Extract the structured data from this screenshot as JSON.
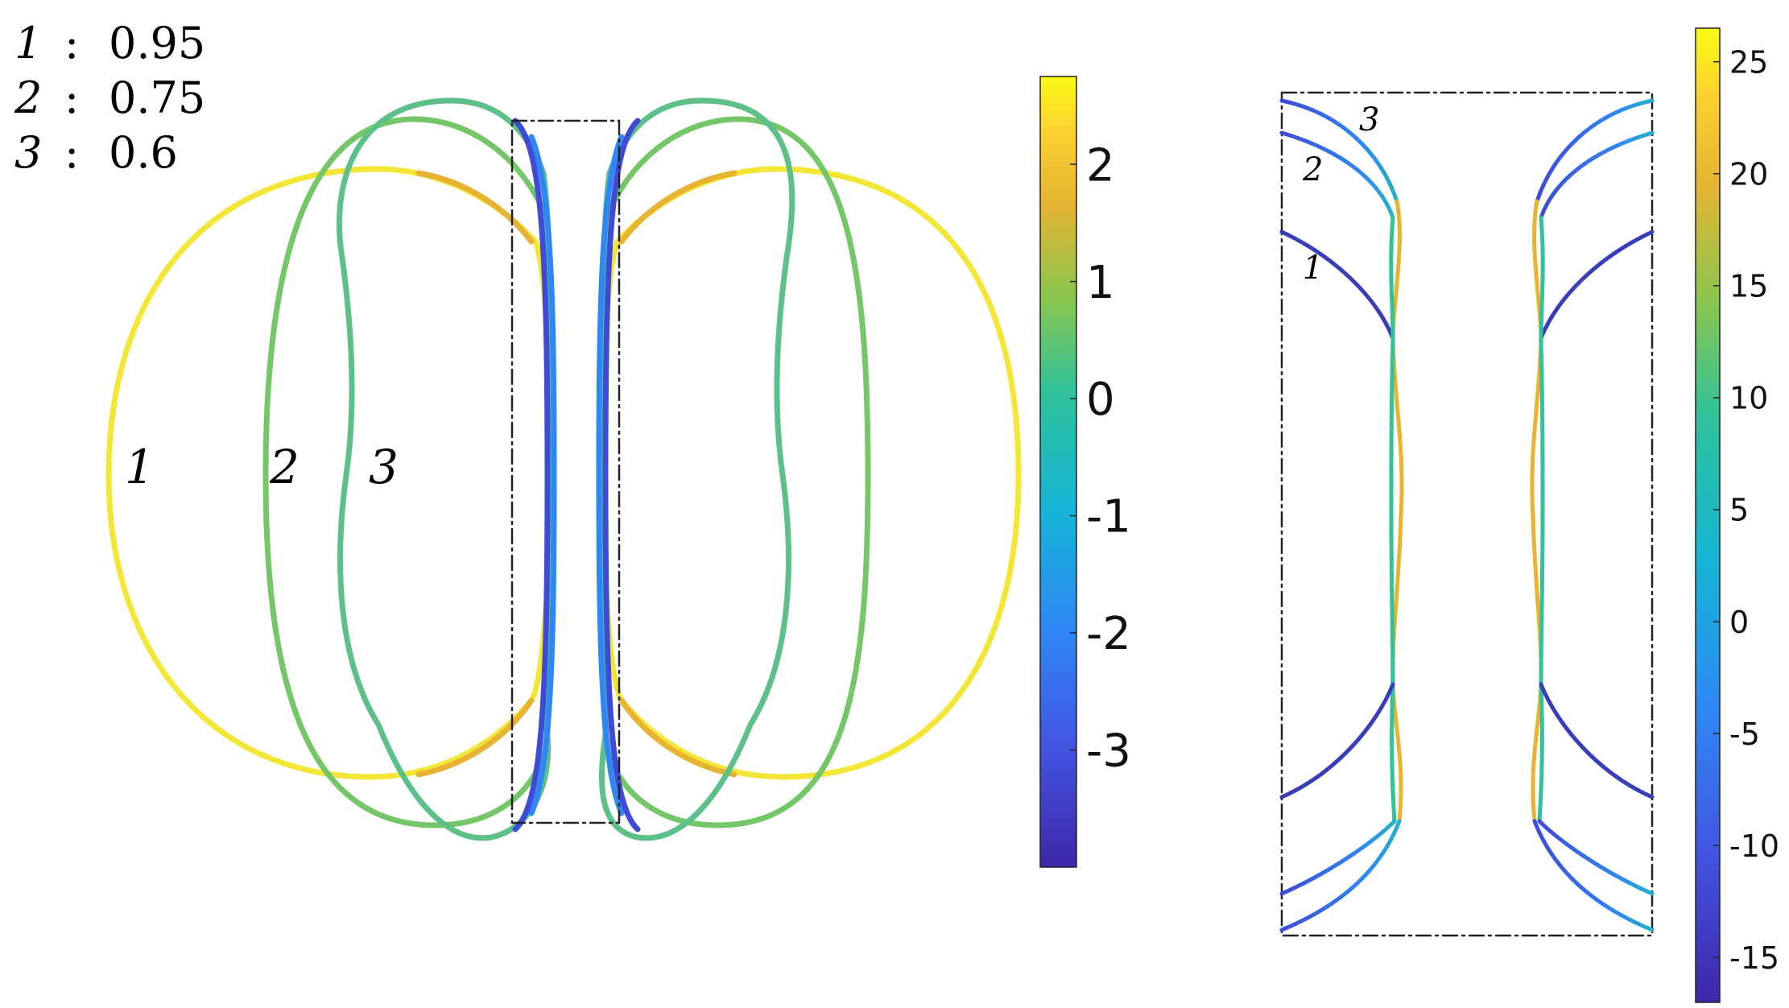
{
  "legend": [
    {
      "id": "1",
      "value": "0.95"
    },
    {
      "id": "2",
      "value": "0.75"
    },
    {
      "id": "3",
      "value": "0.6"
    }
  ],
  "chart_data": [
    {
      "type": "line",
      "panel": "left",
      "series": [
        {
          "name": "1",
          "parameter": 0.95
        },
        {
          "name": "2",
          "parameter": 0.75
        },
        {
          "name": "3",
          "parameter": 0.6
        }
      ],
      "curve_labels": [
        "1",
        "2",
        "3"
      ],
      "colorbar": {
        "ticks": [
          "2",
          "1",
          "0",
          "-1",
          "-2",
          "-3"
        ],
        "tick_values": [
          2,
          1,
          0,
          -1,
          -2,
          -3
        ],
        "range": [
          -4.0,
          2.75
        ]
      },
      "grid": false,
      "inset_box": "dash-dot"
    },
    {
      "type": "line",
      "panel": "right",
      "series": [
        {
          "name": "1",
          "parameter": 0.95
        },
        {
          "name": "2",
          "parameter": 0.75
        },
        {
          "name": "3",
          "parameter": 0.6
        }
      ],
      "curve_labels": [
        "1",
        "2",
        "3"
      ],
      "colorbar": {
        "ticks": [
          "25",
          "20",
          "15",
          "10",
          "5",
          "0",
          "-5",
          "-10",
          "-15"
        ],
        "tick_values": [
          25,
          20,
          15,
          10,
          5,
          0,
          -5,
          -10,
          -15
        ],
        "range": [
          -17,
          26.5
        ]
      },
      "grid": false,
      "frame": "dash-dot"
    }
  ]
}
